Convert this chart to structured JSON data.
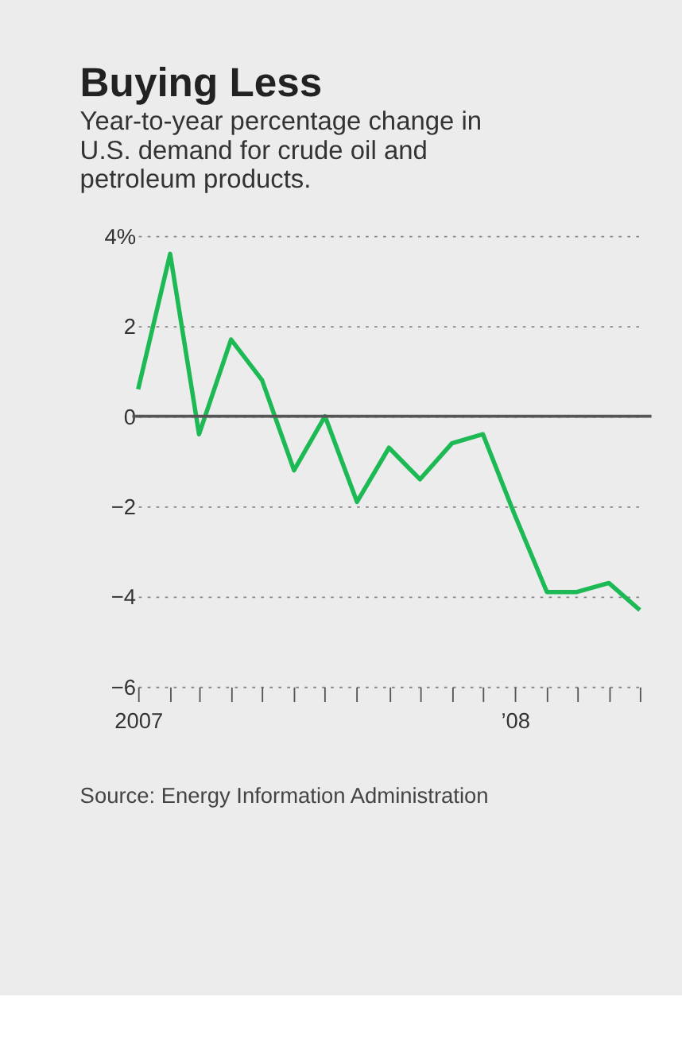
{
  "chart_data": {
    "type": "line",
    "title": "Buying Less",
    "subtitle": "Year-to-year percentage change in U.S. demand for crude oil and petroleum products.",
    "x": [
      "2007-01",
      "2007-02",
      "2007-03",
      "2007-04",
      "2007-05",
      "2007-06",
      "2007-07",
      "2007-08",
      "2007-09",
      "2007-10",
      "2007-11",
      "2007-12",
      "2008-01",
      "2008-02",
      "2008-03",
      "2008-04",
      "2008-05"
    ],
    "series": [
      {
        "color": "#1db954",
        "values": [
          0.6,
          3.6,
          -0.4,
          1.7,
          0.8,
          -1.2,
          0,
          -1.9,
          -0.7,
          -1.4,
          -0.6,
          -0.4,
          -2.2,
          -3.9,
          -3.9,
          -3.7,
          -4.3
        ]
      }
    ],
    "xlim": [
      "2007-01",
      "2008-05"
    ],
    "xticks": [
      {
        "value": "2007-01",
        "label": "2007"
      },
      {
        "value": "2007-02",
        "label": null
      },
      {
        "value": "2007-03",
        "label": null
      },
      {
        "value": "2007-04",
        "label": null
      },
      {
        "value": "2007-05",
        "label": null
      },
      {
        "value": "2007-06",
        "label": null
      },
      {
        "value": "2007-07",
        "label": null
      },
      {
        "value": "2007-08",
        "label": null
      },
      {
        "value": "2007-09",
        "label": null
      },
      {
        "value": "2007-10",
        "label": null
      },
      {
        "value": "2007-11",
        "label": null
      },
      {
        "value": "2007-12",
        "label": null
      },
      {
        "value": "2008-01",
        "label": "’08"
      },
      {
        "value": "2008-02",
        "label": null
      },
      {
        "value": "2008-03",
        "label": null
      },
      {
        "value": "2008-04",
        "label": null
      },
      {
        "value": "2008-05",
        "label": null
      }
    ],
    "ylim": [
      -6,
      4
    ],
    "yticks": [
      -6,
      -4,
      -2,
      0,
      2,
      {
        "value": 4,
        "label": "4%"
      }
    ],
    "grid": "y",
    "ref_lines": [
      {
        "axis": "y",
        "value": 0,
        "color": "#555555"
      }
    ],
    "line_style": "solid",
    "marker": "none",
    "annotations": [
      "Source: Energy Information Administration"
    ]
  }
}
